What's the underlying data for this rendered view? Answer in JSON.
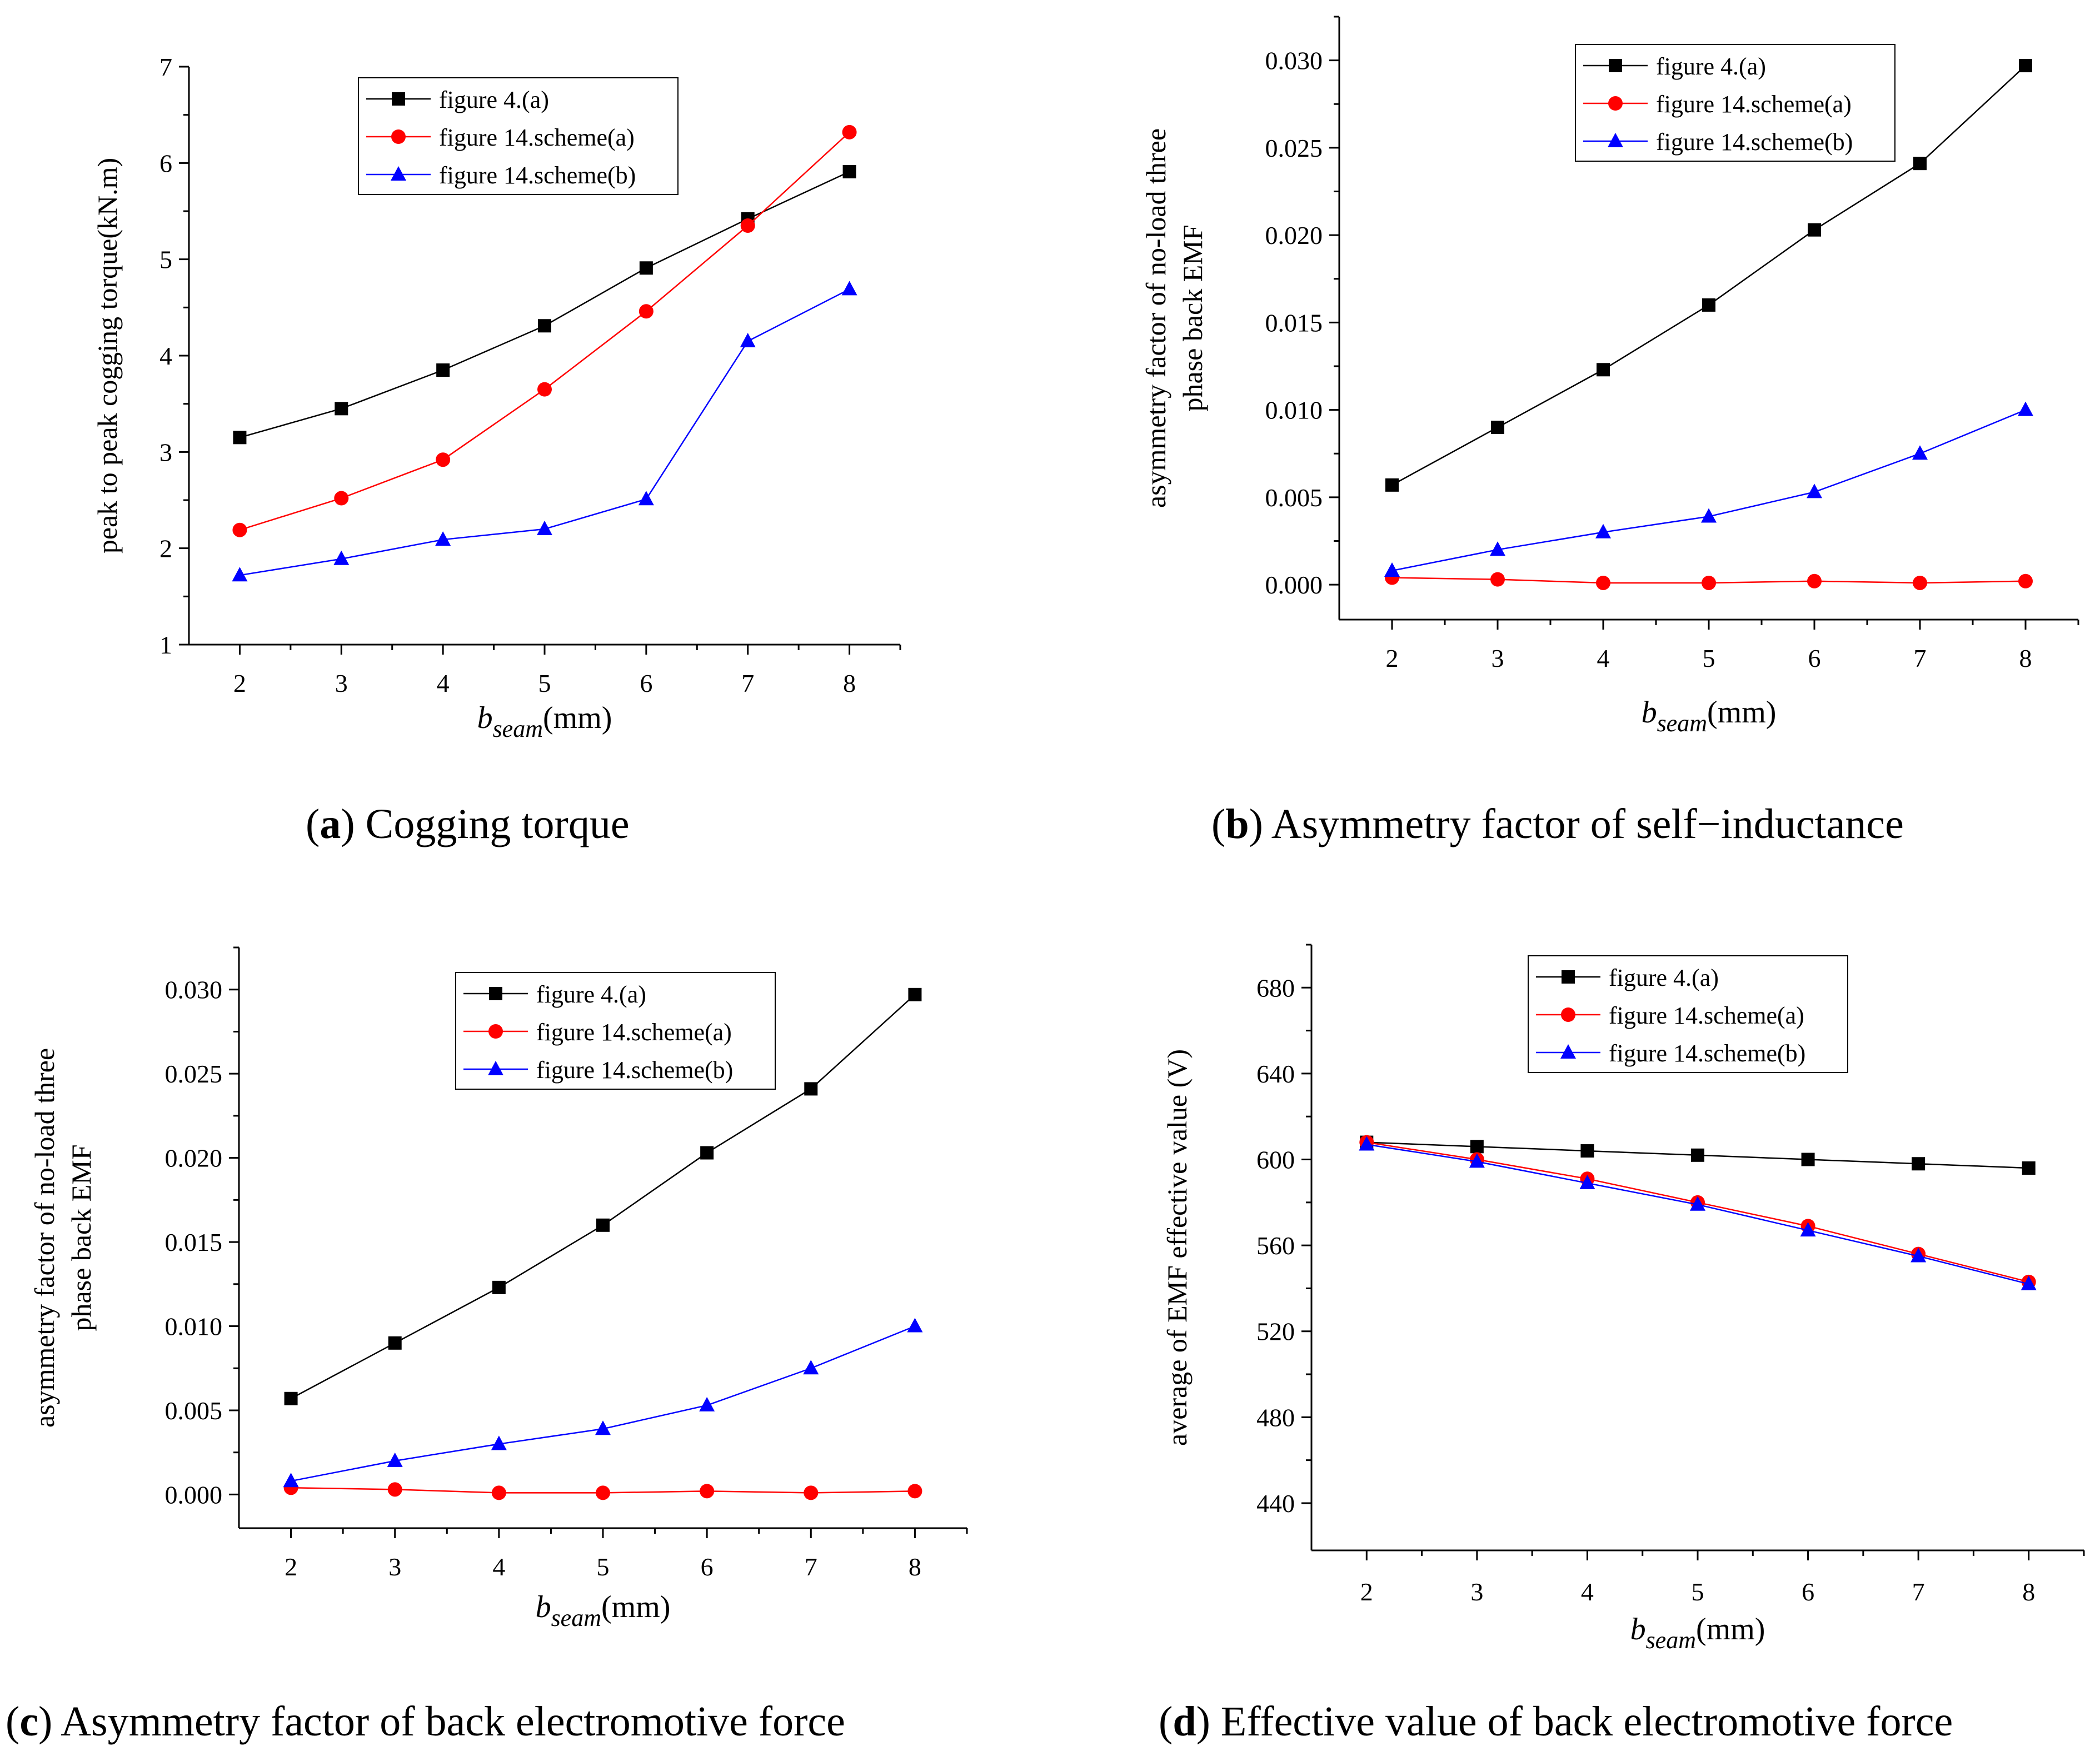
{
  "legend_labels": [
    "figure 4.(a)",
    "figure 14.scheme(a)",
    "figure 14.scheme(b)"
  ],
  "colors": {
    "s0": "#000000",
    "s1": "#ff0000",
    "s2": "#0000ff"
  },
  "chart_data": [
    {
      "id": "a",
      "type": "line",
      "caption_letter": "a",
      "caption_text": "Cogging torque",
      "xlabel_main": "b",
      "xlabel_sub": "seam",
      "xlabel_unit": "(mm)",
      "ylabel_lines": [
        "peak to peak cogging torque(kN.m)"
      ],
      "x": [
        2,
        3,
        4,
        5,
        6,
        7,
        8
      ],
      "xlim": [
        1.5,
        8.5
      ],
      "ylim": [
        1,
        7
      ],
      "yticks": [
        "1",
        "2",
        "3",
        "4",
        "5",
        "6",
        "7"
      ],
      "xticks": [
        "2",
        "3",
        "4",
        "5",
        "6",
        "7",
        "8"
      ],
      "series": [
        {
          "name": "figure 4.(a)",
          "values": [
            3.15,
            3.45,
            3.85,
            4.31,
            4.91,
            5.42,
            5.91
          ]
        },
        {
          "name": "figure 14.scheme(a)",
          "values": [
            2.19,
            2.52,
            2.92,
            3.65,
            4.46,
            5.35,
            6.32
          ]
        },
        {
          "name": "figure 14.scheme(b)",
          "values": [
            1.72,
            1.89,
            2.09,
            2.2,
            2.51,
            4.15,
            4.69
          ]
        }
      ]
    },
    {
      "id": "b",
      "type": "line",
      "caption_letter": "b",
      "caption_text": "Asymmetry factor of self−inductance",
      "xlabel_main": "b",
      "xlabel_sub": "seam",
      "xlabel_unit": "(mm)",
      "ylabel_lines": [
        "asymmetry factor of no-load three",
        "phase back EMF"
      ],
      "x": [
        2,
        3,
        4,
        5,
        6,
        7,
        8
      ],
      "xlim": [
        1.5,
        8.5
      ],
      "ylim": [
        -0.002,
        0.0325
      ],
      "yticks": [
        "0.000",
        "0.005",
        "0.010",
        "0.015",
        "0.020",
        "0.025",
        "0.030"
      ],
      "xticks": [
        "2",
        "3",
        "4",
        "5",
        "6",
        "7",
        "8"
      ],
      "series": [
        {
          "name": "figure 4.(a)",
          "values": [
            0.0057,
            0.009,
            0.0123,
            0.016,
            0.0203,
            0.0241,
            0.0297
          ]
        },
        {
          "name": "figure 14.scheme(a)",
          "values": [
            0.0004,
            0.0003,
            0.0001,
            0.0001,
            0.0002,
            0.0001,
            0.0002
          ]
        },
        {
          "name": "figure 14.scheme(b)",
          "values": [
            0.0008,
            0.002,
            0.003,
            0.0039,
            0.0053,
            0.0075,
            0.01
          ]
        }
      ]
    },
    {
      "id": "c",
      "type": "line",
      "caption_letter": "c",
      "caption_text": "Asymmetry factor of back electromotive force",
      "xlabel_main": "b",
      "xlabel_sub": "seam",
      "xlabel_unit": "(mm)",
      "ylabel_lines": [
        "asymmetry factor of no-load three",
        "phase back EMF"
      ],
      "x": [
        2,
        3,
        4,
        5,
        6,
        7,
        8
      ],
      "xlim": [
        1.5,
        8.5
      ],
      "ylim": [
        -0.002,
        0.0325
      ],
      "yticks": [
        "0.000",
        "0.005",
        "0.010",
        "0.015",
        "0.020",
        "0.025",
        "0.030"
      ],
      "xticks": [
        "2",
        "3",
        "4",
        "5",
        "6",
        "7",
        "8"
      ],
      "series": [
        {
          "name": "figure 4.(a)",
          "values": [
            0.0057,
            0.009,
            0.0123,
            0.016,
            0.0203,
            0.0241,
            0.0297
          ]
        },
        {
          "name": "figure 14.scheme(a)",
          "values": [
            0.0004,
            0.0003,
            0.0001,
            0.0001,
            0.0002,
            0.0001,
            0.0002
          ]
        },
        {
          "name": "figure 14.scheme(b)",
          "values": [
            0.0008,
            0.002,
            0.003,
            0.0039,
            0.0053,
            0.0075,
            0.01
          ]
        }
      ]
    },
    {
      "id": "d",
      "type": "line",
      "caption_letter": "d",
      "caption_text": "Effective value of back electromotive force",
      "xlabel_main": "b",
      "xlabel_sub": "seam",
      "xlabel_unit": "(mm)",
      "ylabel_lines": [
        "average of  EMF effective value (V)"
      ],
      "x": [
        2,
        3,
        4,
        5,
        6,
        7,
        8
      ],
      "xlim": [
        1.5,
        8.5
      ],
      "ylim": [
        418,
        700
      ],
      "yticks": [
        "440",
        "480",
        "520",
        "560",
        "600",
        "640",
        "680"
      ],
      "xticks": [
        "2",
        "3",
        "4",
        "5",
        "6",
        "7",
        "8"
      ],
      "series": [
        {
          "name": "figure 4.(a)",
          "values": [
            608,
            606,
            604,
            602,
            600,
            598,
            596
          ]
        },
        {
          "name": "figure 14.scheme(a)",
          "values": [
            608,
            600,
            591,
            580,
            569,
            556,
            543
          ]
        },
        {
          "name": "figure 14.scheme(b)",
          "values": [
            607,
            599,
            589,
            579,
            567,
            555,
            542
          ]
        }
      ]
    }
  ]
}
